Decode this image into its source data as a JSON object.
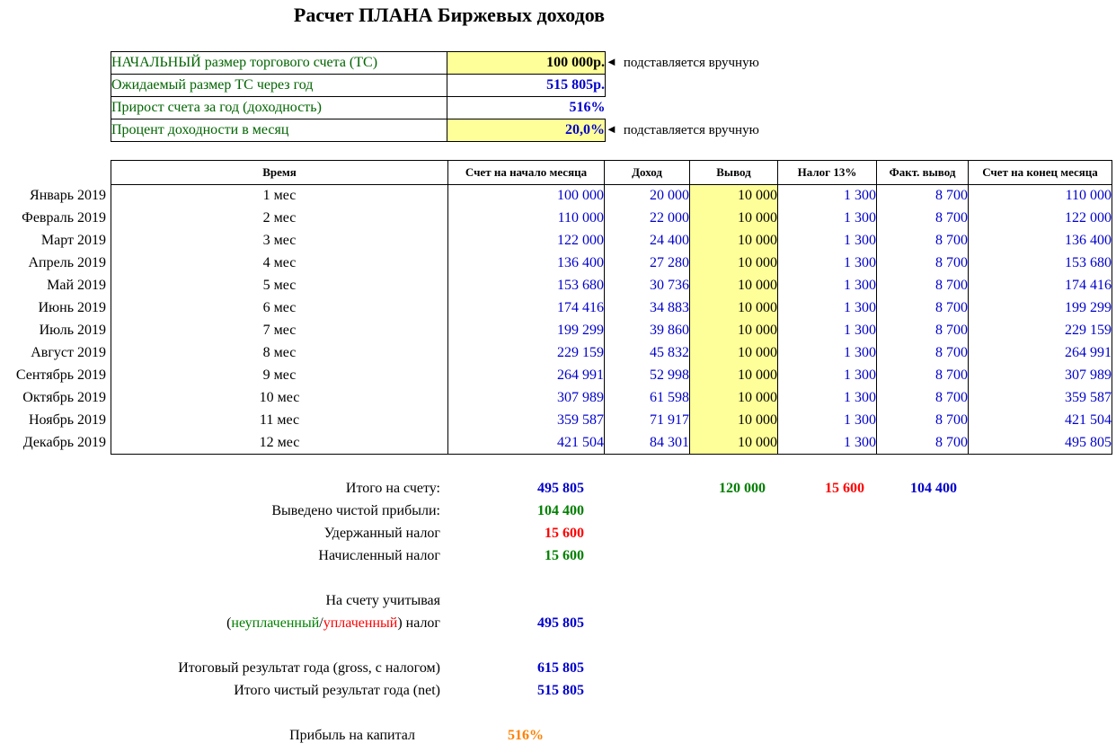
{
  "title": "Расчет ПЛАНА Биржевых доходов",
  "form": {
    "arrow": "◄",
    "rows": [
      {
        "label": "НАЧАЛЬНЫЙ размер торгового счета (ТС)",
        "value": "100 000р.",
        "note": "подставляется вручную"
      },
      {
        "label": "Ожидаемый размер ТС через год",
        "value": "515 805р.",
        "note": ""
      },
      {
        "label": "Прирост счета за год (доходность)",
        "value": "516%",
        "note": ""
      },
      {
        "label": "Процент доходности в месяц",
        "value": "20,0%",
        "note": "подставляется вручную"
      }
    ]
  },
  "table": {
    "headers": [
      "Время",
      "Счет на начало месяца",
      "Доход",
      "Вывод",
      "Налог 13%",
      "Факт. вывод",
      "Счет на конец месяца"
    ],
    "rows": [
      {
        "month": "Январь 2019",
        "time": "1 мес",
        "start": "100 000",
        "income": "20 000",
        "withdraw": "10 000",
        "tax": "1 300",
        "fact": "8 700",
        "end": "110 000"
      },
      {
        "month": "Февраль 2019",
        "time": "2 мес",
        "start": "110 000",
        "income": "22 000",
        "withdraw": "10 000",
        "tax": "1 300",
        "fact": "8 700",
        "end": "122 000"
      },
      {
        "month": "Март 2019",
        "time": "3 мес",
        "start": "122 000",
        "income": "24 400",
        "withdraw": "10 000",
        "tax": "1 300",
        "fact": "8 700",
        "end": "136 400"
      },
      {
        "month": "Апрель 2019",
        "time": "4 мес",
        "start": "136 400",
        "income": "27 280",
        "withdraw": "10 000",
        "tax": "1 300",
        "fact": "8 700",
        "end": "153 680"
      },
      {
        "month": "Май 2019",
        "time": "5 мес",
        "start": "153 680",
        "income": "30 736",
        "withdraw": "10 000",
        "tax": "1 300",
        "fact": "8 700",
        "end": "174 416"
      },
      {
        "month": "Июнь 2019",
        "time": "6 мес",
        "start": "174 416",
        "income": "34 883",
        "withdraw": "10 000",
        "tax": "1 300",
        "fact": "8 700",
        "end": "199 299"
      },
      {
        "month": "Июль 2019",
        "time": "7 мес",
        "start": "199 299",
        "income": "39 860",
        "withdraw": "10 000",
        "tax": "1 300",
        "fact": "8 700",
        "end": "229 159"
      },
      {
        "month": "Август 2019",
        "time": "8 мес",
        "start": "229 159",
        "income": "45 832",
        "withdraw": "10 000",
        "tax": "1 300",
        "fact": "8 700",
        "end": "264 991"
      },
      {
        "month": "Сентябрь 2019",
        "time": "9 мес",
        "start": "264 991",
        "income": "52 998",
        "withdraw": "10 000",
        "tax": "1 300",
        "fact": "8 700",
        "end": "307 989"
      },
      {
        "month": "Октябрь 2019",
        "time": "10 мес",
        "start": "307 989",
        "income": "61 598",
        "withdraw": "10 000",
        "tax": "1 300",
        "fact": "8 700",
        "end": "359 587"
      },
      {
        "month": "Ноябрь 2019",
        "time": "11 мес",
        "start": "359 587",
        "income": "71 917",
        "withdraw": "10 000",
        "tax": "1 300",
        "fact": "8 700",
        "end": "421 504"
      },
      {
        "month": "Декабрь 2019",
        "time": "12 мес",
        "start": "421 504",
        "income": "84 301",
        "withdraw": "10 000",
        "tax": "1 300",
        "fact": "8 700",
        "end": "495 805"
      }
    ]
  },
  "summary": {
    "totals": {
      "label": "Итого на счету:",
      "account": "495 805",
      "withdraw": "120 000",
      "tax": "15 600",
      "fact": "104 400"
    },
    "net_withdrawn": {
      "label": "Выведено чистой прибыли:",
      "value": "104 400"
    },
    "tax_withheld": {
      "label": "Удержанный налог",
      "value": "15 600"
    },
    "tax_accrued": {
      "label": "Начисленный налог",
      "value": "15 600"
    },
    "including_tax": {
      "line1": "На счету учитывая",
      "prefix": "(",
      "unpaid": "неуплаченный",
      "slash": "/",
      "paid": "уплаченный",
      "suffix": ") налог",
      "value": "495 805"
    },
    "gross_result": {
      "label": "Итоговый результат года (gross, с налогом)",
      "value": "615 805"
    },
    "net_result": {
      "label": "Итого чистый результат года (net)",
      "value": "515 805"
    },
    "capital_profit": {
      "label": "Прибыль на капитал",
      "value": "516%"
    }
  },
  "colors": {
    "value_blue": "#0000CD",
    "positive_green": "#008000",
    "negative_red": "#FF0000",
    "percent_orange": "#FF8000",
    "label_green": "#006400",
    "input_yellow": "#FFFF99"
  }
}
